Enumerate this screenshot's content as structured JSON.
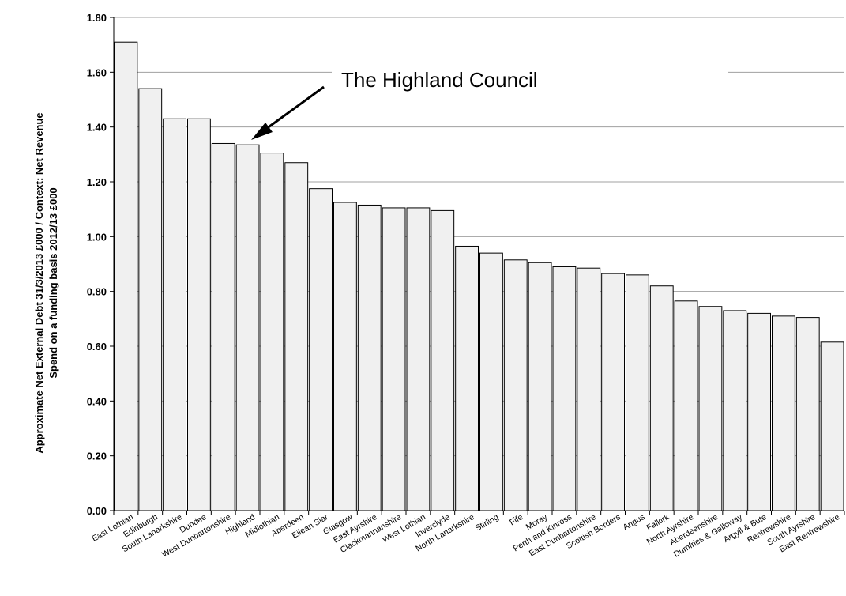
{
  "chart_data": {
    "type": "bar",
    "title": "",
    "xlabel": "",
    "ylabel_line1": "Approximate Net External Debt 31/3/2013 £000 / Context: Net Revenue",
    "ylabel_line2": "Spend on a funding basis 2012/13 £000",
    "ylim": [
      0,
      1.8
    ],
    "yticks": [
      "0.00",
      "0.20",
      "0.40",
      "0.60",
      "0.80",
      "1.00",
      "1.20",
      "1.40",
      "1.60",
      "1.80"
    ],
    "grid": true,
    "categories": [
      "East Lothian",
      "Edinburgh",
      "South Lanarkshire",
      "Dundee",
      "West Dunbartonshire",
      "Highland",
      "Midlothian",
      "Aberdeen",
      "Eilean Siar",
      "Glasgow",
      "East Ayrshire",
      "Clackmannanshire",
      "West Lothian",
      "Inverclyde",
      "North Lanarkshire",
      "Stirling",
      "Fife",
      "Moray",
      "Perth and Kinross",
      "East Dunbartonshire",
      "Scottish Borders",
      "Angus",
      "Falkirk",
      "North Ayrshire",
      "Aberdeenshire",
      "Dumfries & Galloway",
      "Argyll & Bute",
      "Renfrewshire",
      "South Ayrshire",
      "East Renfrewshire"
    ],
    "values": [
      1.71,
      1.54,
      1.43,
      1.43,
      1.34,
      1.335,
      1.305,
      1.27,
      1.175,
      1.125,
      1.115,
      1.105,
      1.105,
      1.095,
      0.965,
      0.94,
      0.915,
      0.905,
      0.89,
      0.885,
      0.865,
      0.86,
      0.82,
      0.765,
      0.745,
      0.73,
      0.72,
      0.71,
      0.705,
      0.615
    ],
    "bar_color": "#f0f0f0",
    "bar_edge_color": "#000000",
    "annotations": [
      {
        "text": "The Highland Council",
        "target": "Highland"
      }
    ]
  }
}
